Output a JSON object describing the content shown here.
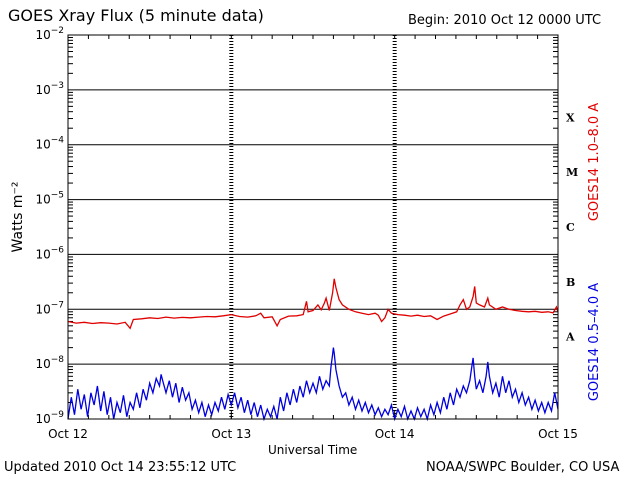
{
  "header": {
    "title": "GOES Xray Flux (5 minute data)",
    "begin": "Begin:  2010 Oct 12 0000 UTC"
  },
  "footer": {
    "updated": "Updated 2010 Oct 14 23:55:12 UTC",
    "credit": "NOAA/SWPC Boulder, CO USA"
  },
  "colors": {
    "long": "#e00000",
    "short": "#0000e0",
    "grid": "#000000"
  },
  "chart_data": {
    "type": "line",
    "title": "GOES Xray Flux (5 minute data)",
    "xlabel": "Universal Time",
    "ylabel": "Watts m⁻²",
    "yscale": "log",
    "ylim": [
      1e-09,
      0.01
    ],
    "xlim": [
      0,
      3
    ],
    "x_unit": "days since 2010 Oct 12 0000 UTC",
    "x_ticks": [
      {
        "x": 0,
        "label": "Oct 12"
      },
      {
        "x": 1,
        "label": "Oct 13"
      },
      {
        "x": 2,
        "label": "Oct 14"
      },
      {
        "x": 3,
        "label": "Oct 15"
      }
    ],
    "y_ticks": [
      {
        "v": 1e-09,
        "base": "10",
        "exp": "−9"
      },
      {
        "v": 1e-08,
        "base": "10",
        "exp": "−8"
      },
      {
        "v": 1e-07,
        "base": "10",
        "exp": "−7"
      },
      {
        "v": 1e-06,
        "base": "10",
        "exp": "−6"
      },
      {
        "v": 1e-05,
        "base": "10",
        "exp": "−5"
      },
      {
        "v": 0.0001,
        "base": "10",
        "exp": "−4"
      },
      {
        "v": 0.001,
        "base": "10",
        "exp": "−3"
      },
      {
        "v": 0.01,
        "base": "10",
        "exp": "−2"
      }
    ],
    "flare_classes": [
      {
        "label": "A",
        "center": 3.16e-08
      },
      {
        "label": "B",
        "center": 3.16e-07
      },
      {
        "label": "C",
        "center": 3.16e-06
      },
      {
        "label": "M",
        "center": 3.16e-05
      },
      {
        "label": "X",
        "center": 0.000316
      }
    ],
    "series": [
      {
        "name": "GOES14 1.0–8.0 A",
        "color": "#e00000",
        "points": [
          [
            0.0,
            6e-08
          ],
          [
            0.05,
            5.6e-08
          ],
          [
            0.1,
            5.8e-08
          ],
          [
            0.15,
            5.5e-08
          ],
          [
            0.2,
            5.7e-08
          ],
          [
            0.25,
            5.6e-08
          ],
          [
            0.3,
            5.4e-08
          ],
          [
            0.35,
            5.8e-08
          ],
          [
            0.38,
            4.5e-08
          ],
          [
            0.4,
            6.5e-08
          ],
          [
            0.45,
            6.7e-08
          ],
          [
            0.5,
            7e-08
          ],
          [
            0.55,
            6.8e-08
          ],
          [
            0.6,
            7.2e-08
          ],
          [
            0.65,
            6.9e-08
          ],
          [
            0.7,
            7.1e-08
          ],
          [
            0.75,
            7e-08
          ],
          [
            0.8,
            7.2e-08
          ],
          [
            0.85,
            7.4e-08
          ],
          [
            0.9,
            7.3e-08
          ],
          [
            0.95,
            7.6e-08
          ],
          [
            1.0,
            8e-08
          ],
          [
            1.05,
            7.4e-08
          ],
          [
            1.1,
            7.2e-08
          ],
          [
            1.15,
            7.6e-08
          ],
          [
            1.18,
            8.5e-08
          ],
          [
            1.2,
            7e-08
          ],
          [
            1.25,
            7.3e-08
          ],
          [
            1.28,
            5e-08
          ],
          [
            1.3,
            6.5e-08
          ],
          [
            1.35,
            7.5e-08
          ],
          [
            1.4,
            7.6e-08
          ],
          [
            1.44,
            8e-08
          ],
          [
            1.46,
            1.4e-07
          ],
          [
            1.47,
            9e-08
          ],
          [
            1.5,
            9.5e-08
          ],
          [
            1.53,
            1.2e-07
          ],
          [
            1.55,
            9.8e-08
          ],
          [
            1.57,
            1.3e-07
          ],
          [
            1.58,
            1.6e-07
          ],
          [
            1.6,
            9.5e-08
          ],
          [
            1.62,
            2e-07
          ],
          [
            1.63,
            3.6e-07
          ],
          [
            1.64,
            2.5e-07
          ],
          [
            1.66,
            1.5e-07
          ],
          [
            1.68,
            1.2e-07
          ],
          [
            1.72,
            1e-07
          ],
          [
            1.76,
            9e-08
          ],
          [
            1.8,
            8.5e-08
          ],
          [
            1.84,
            8e-08
          ],
          [
            1.88,
            8.5e-08
          ],
          [
            1.9,
            7.8e-08
          ],
          [
            1.92,
            6e-08
          ],
          [
            1.94,
            7e-08
          ],
          [
            1.96,
            1e-07
          ],
          [
            1.98,
            8.5e-08
          ],
          [
            2.02,
            8e-08
          ],
          [
            2.06,
            7.8e-08
          ],
          [
            2.1,
            7.5e-08
          ],
          [
            2.14,
            7.8e-08
          ],
          [
            2.18,
            7.4e-08
          ],
          [
            2.22,
            7.6e-08
          ],
          [
            2.26,
            6.5e-08
          ],
          [
            2.3,
            7.5e-08
          ],
          [
            2.34,
            8.2e-08
          ],
          [
            2.38,
            9e-08
          ],
          [
            2.4,
            1.2e-07
          ],
          [
            2.42,
            1.5e-07
          ],
          [
            2.44,
            1e-07
          ],
          [
            2.46,
            1.1e-07
          ],
          [
            2.48,
            1.7e-07
          ],
          [
            2.49,
            2.6e-07
          ],
          [
            2.5,
            1.3e-07
          ],
          [
            2.52,
            1.2e-07
          ],
          [
            2.55,
            1.1e-07
          ],
          [
            2.57,
            1.6e-07
          ],
          [
            2.58,
            1.2e-07
          ],
          [
            2.62,
            1e-07
          ],
          [
            2.66,
            1.1e-07
          ],
          [
            2.7,
            1e-07
          ],
          [
            2.74,
            9.5e-08
          ],
          [
            2.78,
            9.2e-08
          ],
          [
            2.82,
            9e-08
          ],
          [
            2.86,
            9.2e-08
          ],
          [
            2.9,
            8.8e-08
          ],
          [
            2.94,
            9e-08
          ],
          [
            2.97,
            8.6e-08
          ],
          [
            2.99,
            1.1e-07
          ],
          [
            3.0,
            9e-08
          ]
        ]
      },
      {
        "name": "GOES14 0.5–4.0 A",
        "color": "#0000e0",
        "points": [
          [
            0.0,
            1e-09
          ],
          [
            0.02,
            2.5e-09
          ],
          [
            0.04,
            1.2e-09
          ],
          [
            0.06,
            3.5e-09
          ],
          [
            0.08,
            1.5e-09
          ],
          [
            0.1,
            2.8e-09
          ],
          [
            0.12,
            1.1e-09
          ],
          [
            0.14,
            3e-09
          ],
          [
            0.16,
            1.8e-09
          ],
          [
            0.18,
            4e-09
          ],
          [
            0.2,
            1.4e-09
          ],
          [
            0.22,
            3.2e-09
          ],
          [
            0.24,
            1.2e-09
          ],
          [
            0.26,
            2.5e-09
          ],
          [
            0.28,
            1e-09
          ],
          [
            0.3,
            2e-09
          ],
          [
            0.32,
            1.3e-09
          ],
          [
            0.34,
            2.7e-09
          ],
          [
            0.36,
            1.1e-09
          ],
          [
            0.38,
            2e-09
          ],
          [
            0.4,
            1.5e-09
          ],
          [
            0.42,
            3e-09
          ],
          [
            0.44,
            1.6e-09
          ],
          [
            0.46,
            3.5e-09
          ],
          [
            0.48,
            2.2e-09
          ],
          [
            0.5,
            4.5e-09
          ],
          [
            0.52,
            3e-09
          ],
          [
            0.54,
            5.5e-09
          ],
          [
            0.56,
            4e-09
          ],
          [
            0.57,
            6.5e-09
          ],
          [
            0.58,
            5e-09
          ],
          [
            0.6,
            3e-09
          ],
          [
            0.62,
            5e-09
          ],
          [
            0.64,
            2.5e-09
          ],
          [
            0.66,
            4.5e-09
          ],
          [
            0.68,
            2e-09
          ],
          [
            0.7,
            3.8e-09
          ],
          [
            0.72,
            2.2e-09
          ],
          [
            0.74,
            3e-09
          ],
          [
            0.76,
            1.5e-09
          ],
          [
            0.78,
            2.2e-09
          ],
          [
            0.8,
            1.3e-09
          ],
          [
            0.82,
            2e-09
          ],
          [
            0.84,
            1.1e-09
          ],
          [
            0.86,
            1.8e-09
          ],
          [
            0.88,
            1.2e-09
          ],
          [
            0.9,
            2e-09
          ],
          [
            0.92,
            1.4e-09
          ],
          [
            0.94,
            2.5e-09
          ],
          [
            0.96,
            1.5e-09
          ],
          [
            0.98,
            2.8e-09
          ],
          [
            1.0,
            1.8e-09
          ],
          [
            1.02,
            3e-09
          ],
          [
            1.04,
            1.6e-09
          ],
          [
            1.06,
            2.5e-09
          ],
          [
            1.08,
            1.3e-09
          ],
          [
            1.1,
            2.2e-09
          ],
          [
            1.12,
            1.2e-09
          ],
          [
            1.14,
            2e-09
          ],
          [
            1.16,
            1.1e-09
          ],
          [
            1.18,
            1.8e-09
          ],
          [
            1.2,
            1e-09
          ],
          [
            1.22,
            1.5e-09
          ],
          [
            1.24,
            1.1e-09
          ],
          [
            1.26,
            1.7e-09
          ],
          [
            1.28,
            1e-09
          ],
          [
            1.3,
            2.5e-09
          ],
          [
            1.32,
            1.4e-09
          ],
          [
            1.34,
            3e-09
          ],
          [
            1.36,
            1.8e-09
          ],
          [
            1.38,
            3.5e-09
          ],
          [
            1.4,
            2e-09
          ],
          [
            1.42,
            4e-09
          ],
          [
            1.44,
            2.5e-09
          ],
          [
            1.46,
            5e-09
          ],
          [
            1.48,
            3e-09
          ],
          [
            1.5,
            4.5e-09
          ],
          [
            1.52,
            3e-09
          ],
          [
            1.54,
            6e-09
          ],
          [
            1.56,
            3.5e-09
          ],
          [
            1.58,
            5e-09
          ],
          [
            1.6,
            4e-09
          ],
          [
            1.61,
            9e-09
          ],
          [
            1.62,
            1.5e-08
          ],
          [
            1.625,
            2e-08
          ],
          [
            1.63,
            1.6e-08
          ],
          [
            1.64,
            8e-09
          ],
          [
            1.66,
            4e-09
          ],
          [
            1.68,
            2.5e-09
          ],
          [
            1.7,
            3e-09
          ],
          [
            1.72,
            1.8e-09
          ],
          [
            1.74,
            2.5e-09
          ],
          [
            1.76,
            1.5e-09
          ],
          [
            1.78,
            2.2e-09
          ],
          [
            1.8,
            1.4e-09
          ],
          [
            1.82,
            2e-09
          ],
          [
            1.84,
            1.3e-09
          ],
          [
            1.86,
            1.8e-09
          ],
          [
            1.88,
            1.2e-09
          ],
          [
            1.9,
            1.6e-09
          ],
          [
            1.92,
            1.1e-09
          ],
          [
            1.94,
            1.5e-09
          ],
          [
            1.96,
            1.2e-09
          ],
          [
            1.98,
            1.8e-09
          ],
          [
            2.0,
            1e-09
          ],
          [
            2.02,
            1.5e-09
          ],
          [
            2.04,
            1.1e-09
          ],
          [
            2.06,
            1.7e-09
          ],
          [
            2.08,
            1e-09
          ],
          [
            2.1,
            1.4e-09
          ],
          [
            2.12,
            1e-09
          ],
          [
            2.14,
            1.6e-09
          ],
          [
            2.16,
            1.1e-09
          ],
          [
            2.18,
            1.5e-09
          ],
          [
            2.2,
            1e-09
          ],
          [
            2.22,
            1.8e-09
          ],
          [
            2.24,
            1.2e-09
          ],
          [
            2.26,
            2e-09
          ],
          [
            2.28,
            1.3e-09
          ],
          [
            2.3,
            2.5e-09
          ],
          [
            2.32,
            1.5e-09
          ],
          [
            2.34,
            3e-09
          ],
          [
            2.36,
            1.8e-09
          ],
          [
            2.38,
            3.5e-09
          ],
          [
            2.4,
            2.5e-09
          ],
          [
            2.42,
            4e-09
          ],
          [
            2.44,
            3e-09
          ],
          [
            2.46,
            5e-09
          ],
          [
            2.47,
            8e-09
          ],
          [
            2.48,
            1.3e-08
          ],
          [
            2.49,
            6e-09
          ],
          [
            2.5,
            3.5e-09
          ],
          [
            2.52,
            5e-09
          ],
          [
            2.54,
            3e-09
          ],
          [
            2.56,
            6e-09
          ],
          [
            2.57,
            1.1e-08
          ],
          [
            2.58,
            6e-09
          ],
          [
            2.6,
            3e-09
          ],
          [
            2.62,
            4.5e-09
          ],
          [
            2.64,
            2.5e-09
          ],
          [
            2.66,
            6e-09
          ],
          [
            2.68,
            3e-09
          ],
          [
            2.7,
            5e-09
          ],
          [
            2.72,
            2.5e-09
          ],
          [
            2.74,
            3.5e-09
          ],
          [
            2.76,
            2e-09
          ],
          [
            2.78,
            3e-09
          ],
          [
            2.8,
            1.8e-09
          ],
          [
            2.82,
            2.5e-09
          ],
          [
            2.84,
            1.5e-09
          ],
          [
            2.86,
            2.2e-09
          ],
          [
            2.88,
            1.4e-09
          ],
          [
            2.9,
            2e-09
          ],
          [
            2.92,
            1.3e-09
          ],
          [
            2.94,
            2e-09
          ],
          [
            2.96,
            1.4e-09
          ],
          [
            2.98,
            3e-09
          ],
          [
            3.0,
            1.5e-09
          ]
        ]
      }
    ]
  }
}
